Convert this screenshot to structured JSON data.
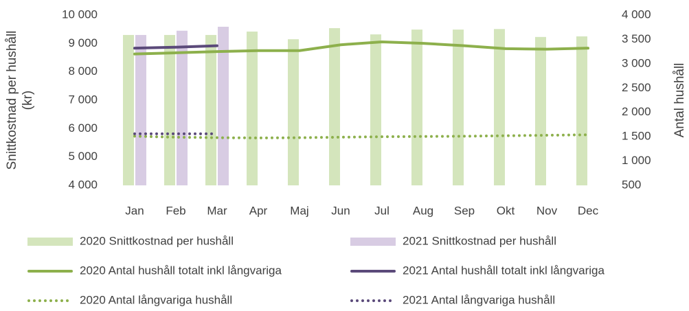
{
  "chart_data": {
    "type": "bar",
    "ylabel": [
      "Snittkostnad per hushåll",
      "(kr)"
    ],
    "y2label": "Antal hushåll",
    "categories": [
      "Jan",
      "Feb",
      "Mar",
      "Apr",
      "Maj",
      "Jun",
      "Jul",
      "Aug",
      "Sep",
      "Okt",
      "Nov",
      "Dec"
    ],
    "ylim": [
      4000,
      10000
    ],
    "yticks": [
      {
        "value": 4000,
        "label": "4 000"
      },
      {
        "value": 5000,
        "label": "5 000"
      },
      {
        "value": 6000,
        "label": "6 000"
      },
      {
        "value": 7000,
        "label": "7 000"
      },
      {
        "value": 8000,
        "label": "8 000"
      },
      {
        "value": 9000,
        "label": "9 000"
      },
      {
        "value": 10000,
        "label": "10 000"
      }
    ],
    "y2lim": [
      500,
      4000
    ],
    "y2ticks": [
      500,
      {
        "value": 1000,
        "label": "1 000"
      },
      {
        "value": 1500,
        "label": "1 500"
      },
      {
        "value": 2000,
        "label": "2 000"
      },
      {
        "value": 2500,
        "label": "2 500"
      },
      {
        "value": 3000,
        "label": "3 000"
      },
      {
        "value": 3500,
        "label": "3 500"
      },
      {
        "value": 4000,
        "label": "4 000"
      }
    ],
    "series": [
      {
        "name": "2020 Snittkostnad per hushåll",
        "type": "bar",
        "color": "#d4e5bc",
        "values": [
          9300,
          9300,
          9300,
          9420,
          9150,
          9540,
          9320,
          9490,
          9490,
          9510,
          9230,
          9250
        ]
      },
      {
        "name": "2021 Snittkostnad per hushåll",
        "type": "bar",
        "color": "#d8cce3",
        "values": [
          9300,
          9450,
          9590,
          null,
          null,
          null,
          null,
          null,
          null,
          null,
          null,
          null
        ]
      },
      {
        "name": "2020 Antal hushåll totalt inkl långvariga",
        "type": "line",
        "axis": "y2",
        "color": "#8db04c",
        "values": [
          3200,
          3225,
          3250,
          3270,
          3270,
          3390,
          3450,
          3420,
          3370,
          3310,
          3300,
          3320
        ]
      },
      {
        "name": "2021 Antal hushåll totalt inkl långvariga",
        "type": "line",
        "axis": "y2",
        "color": "#5b4a7a",
        "values": [
          3320,
          3340,
          3370,
          null,
          null,
          null,
          null,
          null,
          null,
          null,
          null,
          null
        ]
      },
      {
        "name": "2020 Antal långvariga hushåll",
        "type": "line",
        "dotted": true,
        "axis": "y2",
        "color": "#8db04c",
        "values": [
          1510,
          1490,
          1480,
          1475,
          1480,
          1490,
          1500,
          1505,
          1510,
          1520,
          1530,
          1540
        ]
      },
      {
        "name": "2021 Antal långvariga hushåll",
        "type": "line",
        "dotted": true,
        "axis": "y2",
        "color": "#5b4a7a",
        "values": [
          1560,
          1560,
          1560,
          null,
          null,
          null,
          null,
          null,
          null,
          null,
          null,
          null
        ]
      }
    ]
  }
}
